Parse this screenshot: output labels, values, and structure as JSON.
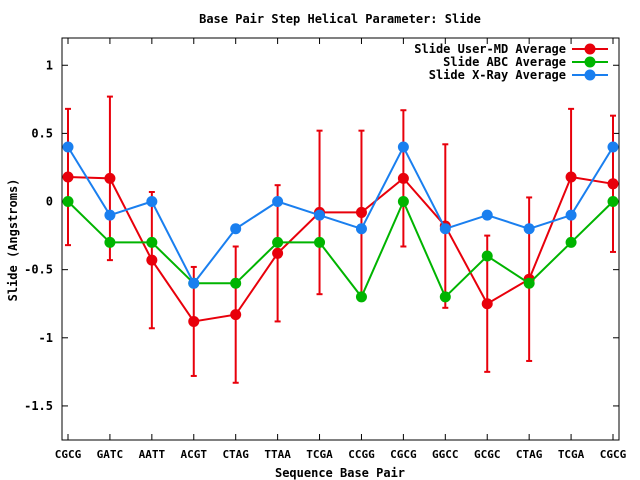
{
  "chart_data": {
    "type": "line",
    "title": "Base Pair Step Helical Parameter: Slide",
    "xlabel": "Sequence Base Pair",
    "ylabel": "Slide (Angstroms)",
    "categories": [
      "CGCG",
      "GATC",
      "AATT",
      "ACGT",
      "CTAG",
      "TTAA",
      "TCGA",
      "CCGG",
      "CGCG",
      "GGCC",
      "GCGC",
      "CTAG",
      "TCGA",
      "CGCG"
    ],
    "ylim": [
      -1.75,
      1.2
    ],
    "yticks": [
      -1.5,
      -1,
      -0.5,
      0,
      0.5,
      1
    ],
    "ytick_labels": [
      "-1.5",
      "-1",
      "-0.5",
      "0",
      "0.5",
      "1"
    ],
    "legend_position": "top-right",
    "grid": false,
    "series": [
      {
        "name": "Slide User-MD Average",
        "color": "#e8000b",
        "values": [
          0.18,
          0.17,
          -0.43,
          -0.88,
          -0.83,
          -0.38,
          -0.08,
          -0.08,
          0.17,
          -0.18,
          -0.75,
          -0.57,
          0.18,
          0.13
        ],
        "error": [
          0.5,
          0.6,
          0.5,
          0.4,
          0.5,
          0.5,
          0.6,
          0.6,
          0.5,
          0.6,
          0.5,
          0.6,
          0.5,
          0.5
        ]
      },
      {
        "name": "Slide ABC Average",
        "color": "#00b400",
        "values": [
          0.0,
          -0.3,
          -0.3,
          -0.6,
          -0.6,
          -0.3,
          -0.3,
          -0.7,
          0.0,
          -0.7,
          -0.4,
          -0.6,
          -0.3,
          0.0
        ]
      },
      {
        "name": "Slide X-Ray Average",
        "color": "#1a7fef",
        "values": [
          0.4,
          -0.1,
          0.0,
          -0.6,
          -0.2,
          0.0,
          -0.1,
          -0.2,
          0.4,
          -0.2,
          -0.1,
          -0.2,
          -0.1,
          0.4
        ]
      }
    ]
  }
}
